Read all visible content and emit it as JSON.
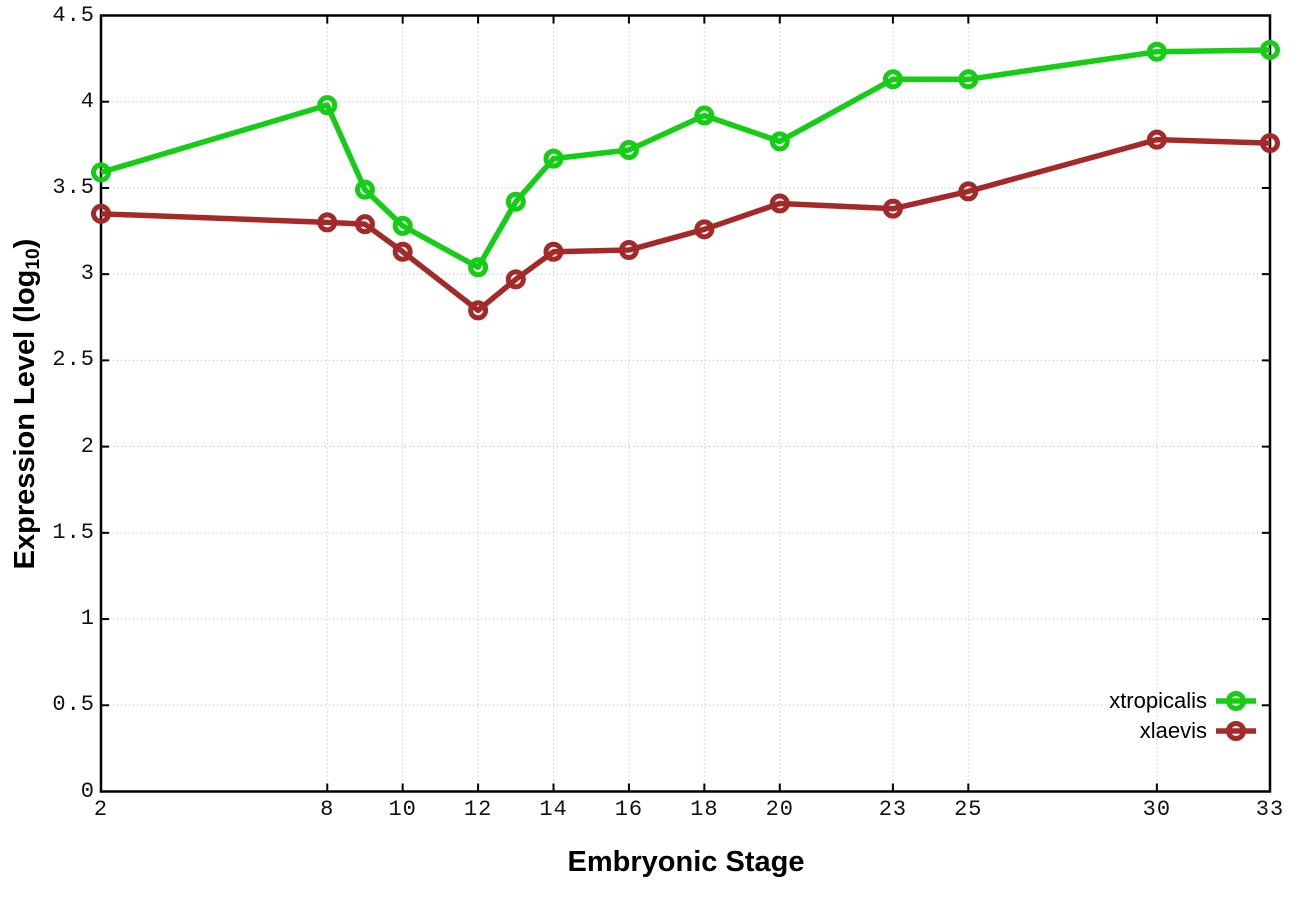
{
  "figure": {
    "background": "#ffffff",
    "ylabel_parts": {
      "prefix": "Expression Level (log",
      "subscript": "10",
      "suffix": ")"
    }
  },
  "style": {
    "grid_color": "#b8b8b8",
    "axis_color": "#000000",
    "line_width": 5.5,
    "marker_radius": 7.5,
    "marker_stroke": 5
  },
  "chart_data": {
    "type": "line",
    "title": "",
    "xlabel": "Embryonic Stage",
    "ylabel": "Expression Level (log10)",
    "xlim": [
      2,
      33
    ],
    "ylim": [
      0,
      4.5
    ],
    "grid": true,
    "legend_position": "inside-bottom-right",
    "x": [
      2,
      8,
      9,
      10,
      12,
      13,
      14,
      16,
      18,
      20,
      23,
      25,
      30,
      33
    ],
    "x_ticks": [
      2,
      8,
      10,
      12,
      14,
      16,
      18,
      20,
      23,
      25,
      30,
      33
    ],
    "x_tick_labels": [
      "2",
      "8",
      "10",
      "12",
      "14",
      "16",
      "18",
      "20",
      "23",
      "25",
      "30",
      "33"
    ],
    "y_ticks": [
      0,
      0.5,
      1,
      1.5,
      2,
      2.5,
      3,
      3.5,
      4,
      4.5
    ],
    "y_tick_labels": [
      "0",
      "0.5",
      "1",
      "1.5",
      "2",
      "2.5",
      "3",
      "3.5",
      "4",
      "4.5"
    ],
    "series": [
      {
        "name": "xtropicalis",
        "color": "#15CD15",
        "values": [
          3.59,
          3.98,
          3.49,
          3.28,
          3.04,
          3.42,
          3.67,
          3.72,
          3.92,
          3.77,
          4.13,
          4.13,
          4.29,
          4.3
        ]
      },
      {
        "name": "xlaevis",
        "color": "#A42A2A",
        "values": [
          3.35,
          3.3,
          3.29,
          3.13,
          2.79,
          2.97,
          3.13,
          3.14,
          3.26,
          3.41,
          3.38,
          3.48,
          3.78,
          3.76
        ]
      }
    ]
  }
}
